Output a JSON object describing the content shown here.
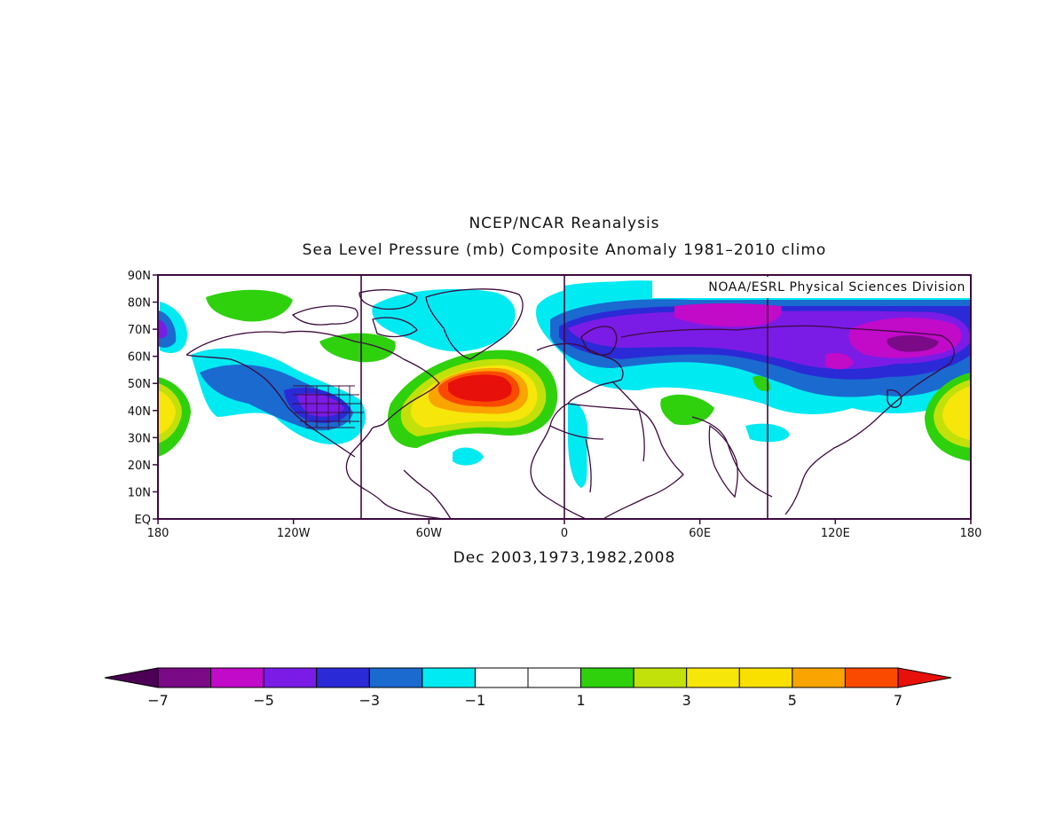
{
  "header": {
    "title": "NCEP/NCAR Reanalysis",
    "subtitle": "Sea Level Pressure (mb) Composite Anomaly 1981–2010 climo"
  },
  "credit": "NOAA/ESRL Physical Sciences Division",
  "footer": "Dec 2003,1973,1982,2008",
  "lat_labels": [
    "90N",
    "80N",
    "70N",
    "60N",
    "50N",
    "40N",
    "30N",
    "20N",
    "10N",
    "EQ"
  ],
  "lon_labels": [
    "180",
    "120W",
    "60W",
    "0",
    "60E",
    "120E",
    "180"
  ],
  "colorbar": {
    "labels": [
      "−7",
      "−5",
      "−3",
      "−1",
      "1",
      "3",
      "5",
      "7"
    ],
    "colors": [
      "#4b0055",
      "#7a0a86",
      "#c10bc9",
      "#7a1ce6",
      "#2a2ad6",
      "#1a6ad0",
      "#00eaf2",
      "#ffffff",
      "#ffffff",
      "#2ed10c",
      "#c2e00a",
      "#f7e60a",
      "#f9e000",
      "#f9a400",
      "#fa4a00",
      "#e8100a"
    ]
  },
  "colors": {
    "border": "#3d0b3e",
    "coast": "#3d0b3e"
  }
}
